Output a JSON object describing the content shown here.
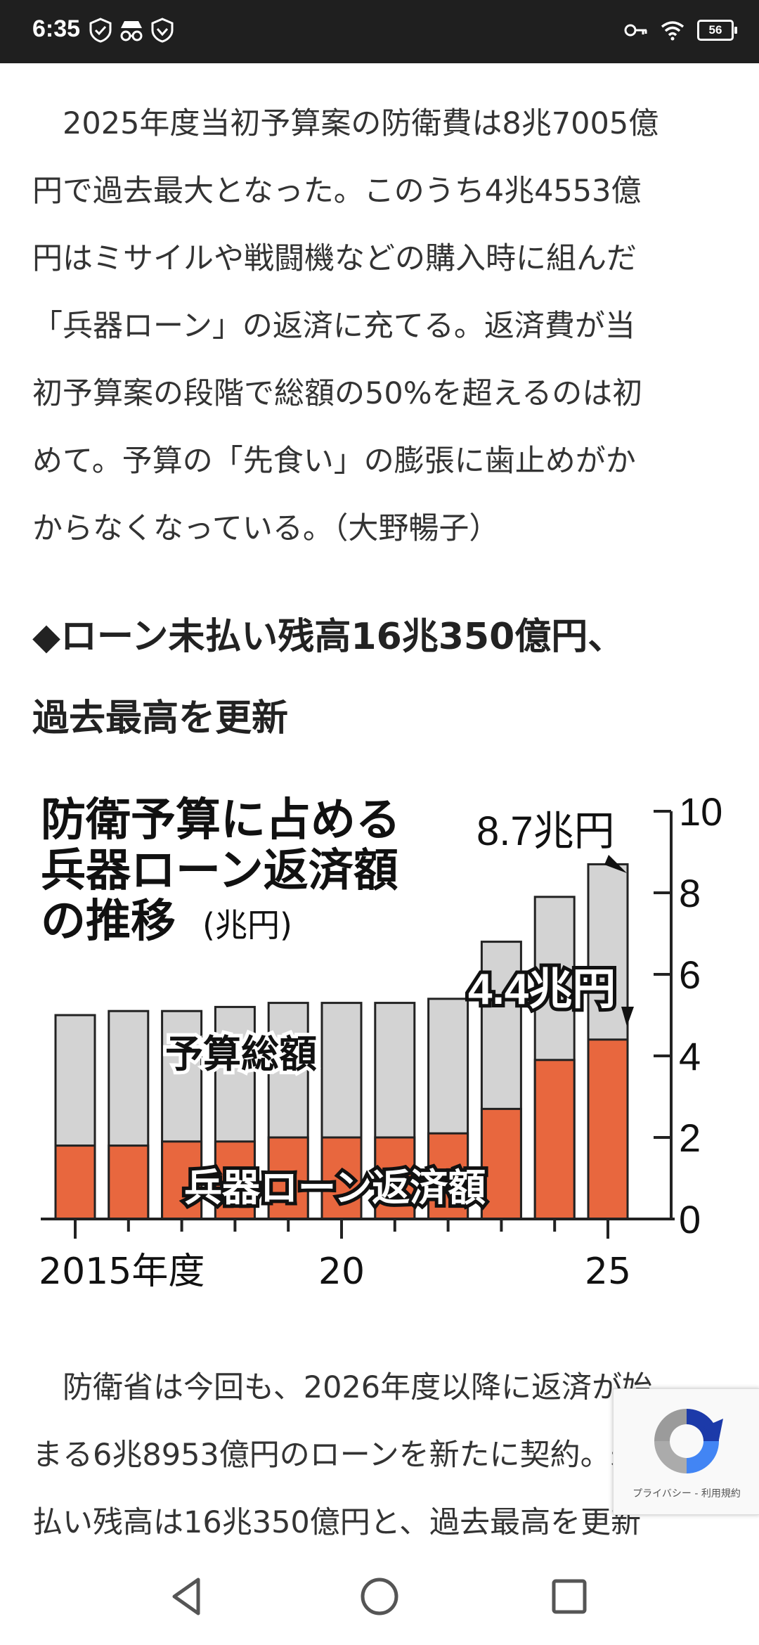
{
  "status_bar": {
    "time": "6:35",
    "left_icons": [
      "vpn-shield-icon",
      "incognito-icon",
      "shield-icon"
    ],
    "right_icons": [
      "key-icon",
      "wifi-icon",
      "battery-icon"
    ],
    "battery": "56"
  },
  "article": {
    "paragraph1_lines": [
      "2025年度当初予算案の防衛費は8兆7005億",
      "円で過去最大となった。このうち4兆4553億",
      "円はミサイルや戦闘機などの購入時に組んだ",
      "「兵器ローン」の返済に充てる。返済費が当",
      "初予算案の段階で総額の50%を超えるのは初",
      "めて。予算の「先食い」の膨張に歯止めがか",
      "からなくなっている。（大野暢子）"
    ],
    "heading_lines": [
      "◆ローン未払い残高16兆350億円、",
      "過去最高を更新"
    ],
    "paragraph2_lines": [
      "防衛省は今回も、2026年度以降に返済が始",
      "まる6兆8953億円のローンを新たに契約。未",
      "払い残高は16兆350億円と、過去最高を更新"
    ]
  },
  "chart_data": {
    "type": "bar",
    "title": "防衛予算に占める兵器ローン返済額の推移",
    "title_lines": [
      "防衛予算に占める",
      "兵器ローン返済額",
      "の推移"
    ],
    "unit": "(兆円)",
    "x": [
      2015,
      2016,
      2017,
      2018,
      2019,
      2020,
      2021,
      2022,
      2023,
      2024,
      2025
    ],
    "x_tick_labels": [
      "2015年度",
      "20",
      "25"
    ],
    "x_tick_label_years": [
      2015,
      2020,
      2025
    ],
    "series": [
      {
        "name": "予算総額",
        "values": [
          5.0,
          5.1,
          5.1,
          5.2,
          5.3,
          5.3,
          5.3,
          5.4,
          6.8,
          7.9,
          8.7
        ],
        "color": "#d3d3d3"
      },
      {
        "name": "兵器ローン返済額",
        "values": [
          1.8,
          1.8,
          1.9,
          1.9,
          2.0,
          2.0,
          2.0,
          2.1,
          2.7,
          3.9,
          4.4
        ],
        "color": "#e8673e"
      }
    ],
    "y_ticks": [
      0,
      2,
      4,
      6,
      8,
      10
    ],
    "ylim": [
      0,
      10
    ],
    "annotations": [
      "8.7兆円",
      "4.4兆円"
    ],
    "series_labels": [
      "予算総額",
      "兵器ローン返済額"
    ]
  },
  "recaptcha": {
    "text": "プライバシー - 利用規約"
  },
  "nav_bar": {
    "buttons": [
      "back-triangle-icon",
      "home-circle-icon",
      "recents-square-icon"
    ]
  }
}
